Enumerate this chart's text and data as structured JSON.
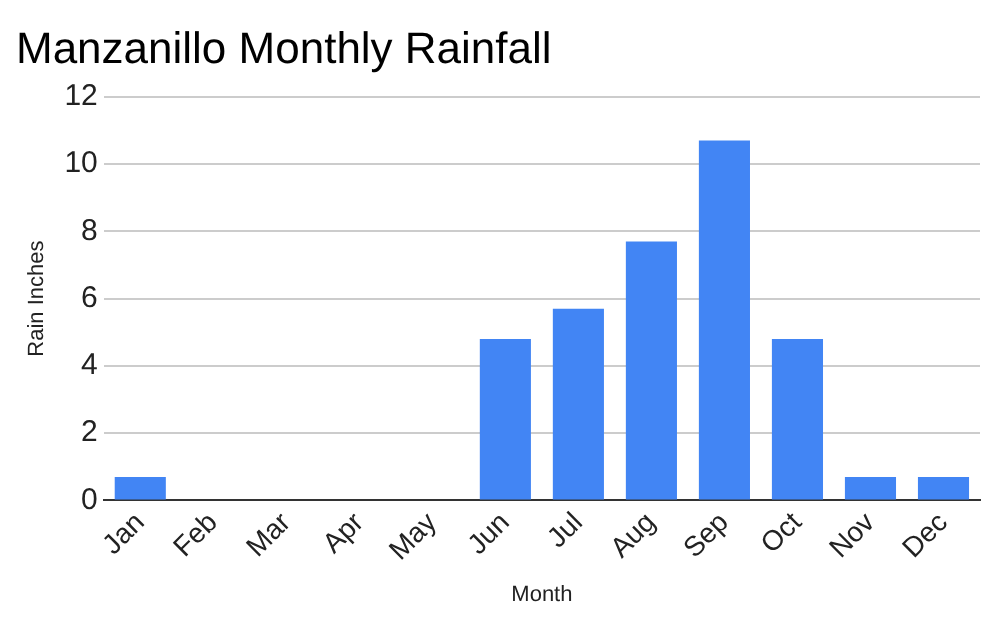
{
  "chart_data": {
    "type": "bar",
    "title": "Manzanillo Monthly Rainfall",
    "xlabel": "Month",
    "ylabel": "Rain Inches",
    "categories": [
      "Jan",
      "Feb",
      "Mar",
      "Apr",
      "May",
      "Jun",
      "Jul",
      "Aug",
      "Sep",
      "Oct",
      "Nov",
      "Dec"
    ],
    "values": [
      0.7,
      0,
      0,
      0,
      0,
      4.8,
      5.7,
      7.7,
      10.7,
      4.8,
      0.7,
      0.7
    ],
    "color": "#4285f4",
    "ylim": [
      0,
      12
    ],
    "yticks": [
      0,
      2,
      4,
      6,
      8,
      10,
      12
    ],
    "grid": "y",
    "legend": false
  }
}
